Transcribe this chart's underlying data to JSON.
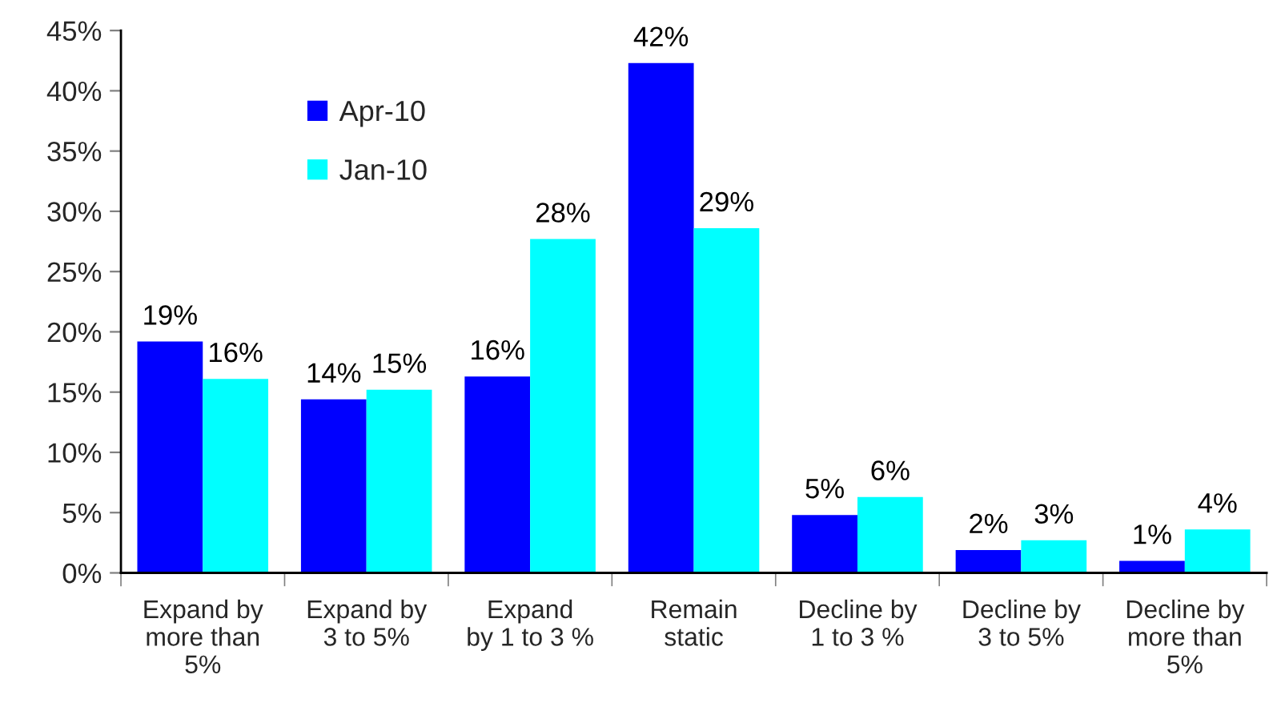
{
  "chart_data": {
    "type": "bar",
    "categories": [
      "Expand by\nmore than\n5%",
      "Expand by\n3 to 5%",
      "Expand\nby 1 to 3 %",
      "Remain\nstatic",
      "Decline by\n1 to 3 %",
      "Decline by\n3 to 5%",
      "Decline by\nmore than\n5%"
    ],
    "series": [
      {
        "name": "Apr-10",
        "color": "#0000ff",
        "values": [
          19.2,
          14.4,
          16.3,
          42.3,
          4.8,
          1.9,
          1.0
        ],
        "value_labels": [
          "19%",
          "14%",
          "16%",
          "42%",
          "5%",
          "2%",
          "1%"
        ]
      },
      {
        "name": "Jan-10",
        "color": "#00ffff",
        "values": [
          16.1,
          15.2,
          27.7,
          28.6,
          6.3,
          2.7,
          3.6
        ],
        "value_labels": [
          "16%",
          "15%",
          "28%",
          "29%",
          "6%",
          "3%",
          "4%"
        ]
      }
    ],
    "ylim": [
      0,
      45
    ],
    "yticks": [
      {
        "value": 0,
        "label": "0%"
      },
      {
        "value": 5,
        "label": "5%"
      },
      {
        "value": 10,
        "label": "10%"
      },
      {
        "value": 15,
        "label": "15%"
      },
      {
        "value": 20,
        "label": "20%"
      },
      {
        "value": 25,
        "label": "25%"
      },
      {
        "value": 30,
        "label": "30%"
      },
      {
        "value": 35,
        "label": "35%"
      },
      {
        "value": 40,
        "label": "40%"
      },
      {
        "value": 45,
        "label": "45%"
      }
    ],
    "grid": false,
    "legend": "top left"
  }
}
